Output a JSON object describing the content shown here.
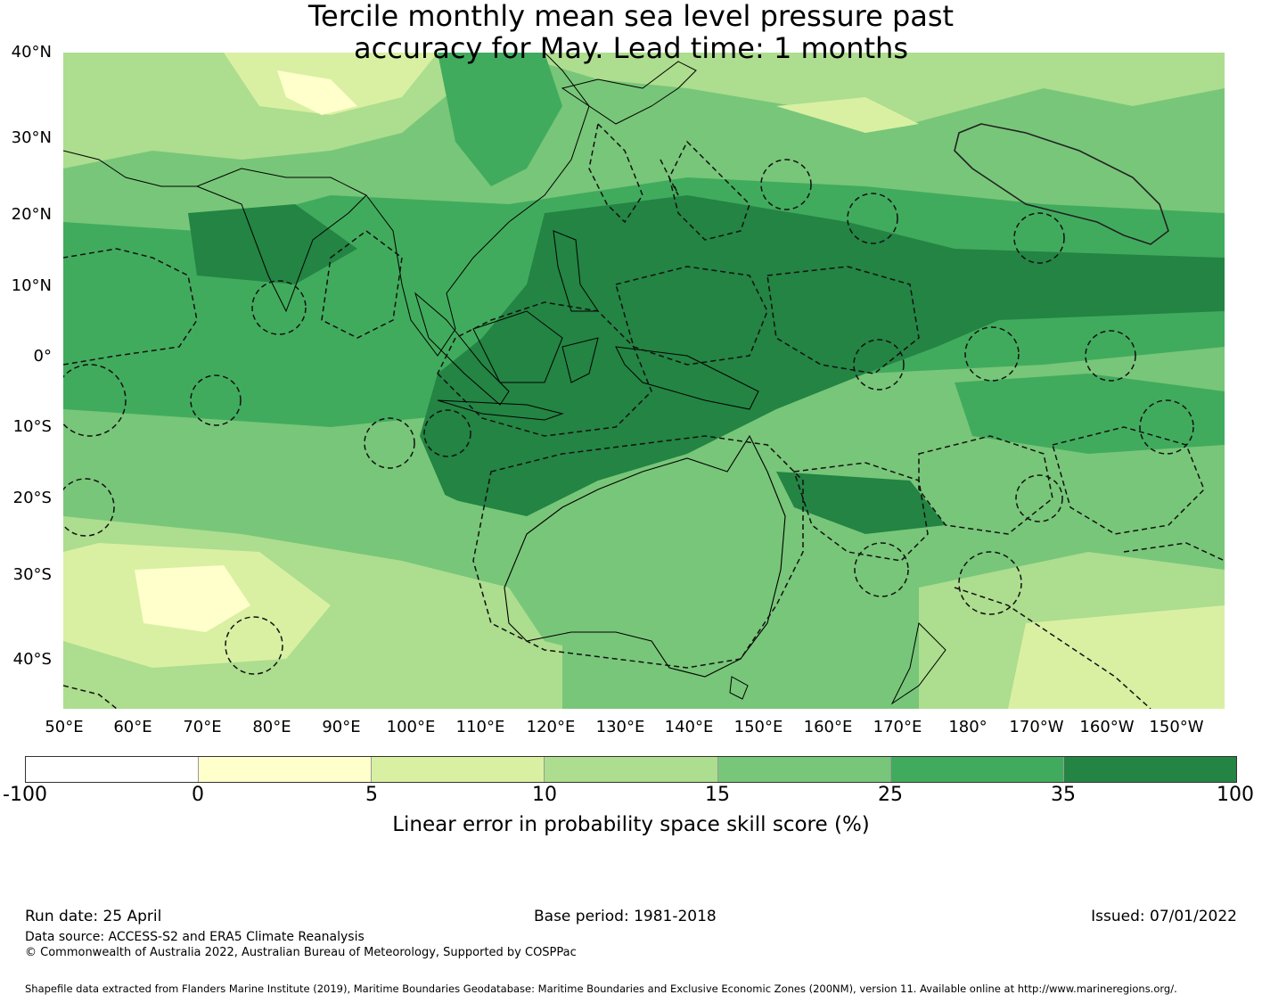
{
  "title": {
    "line1": "Tercile monthly mean sea level pressure past",
    "line2": "accuracy for May. Lead time: 1 months"
  },
  "map": {
    "region": "Pacific / Indian Ocean / Maritime Continent",
    "lat_labels": [
      "40°N",
      "30°N",
      "20°N",
      "10°N",
      "0°",
      "10°S",
      "20°S",
      "30°S",
      "40°S"
    ],
    "lon_labels": [
      "50°E",
      "60°E",
      "70°E",
      "80°E",
      "90°E",
      "100°E",
      "110°E",
      "120°E",
      "130°E",
      "140°E",
      "150°E",
      "160°E",
      "170°E",
      "180°",
      "170°W",
      "160°W",
      "150°W"
    ],
    "boundaries_style": "dashed EEZ lines",
    "highlighted_area": "Hawaii EEZ (solid outline)"
  },
  "colorbar": {
    "ticks": [
      "-100",
      "0",
      "5",
      "10",
      "15",
      "25",
      "35",
      "100"
    ],
    "colors": [
      "#ffffff",
      "#ffffcc",
      "#d9f0a3",
      "#addd8e",
      "#78c679",
      "#41ab5d",
      "#238443"
    ],
    "label": "Linear error in probability space skill score (%)"
  },
  "footer": {
    "run_date": "Run date: 25 April",
    "base_period": "Base period: 1981-2018",
    "issued": "Issued: 07/01/2022",
    "data_source": "Data source: ACCESS-S2 and ERA5 Climate Reanalysis",
    "copyright": "© Commonwealth of Australia 2022, Australian Bureau of Meteorology, Supported by COSPPac",
    "shapefile": "Shapefile data extracted from Flanders Marine Institute (2019), Maritime Boundaries Geodatabase: Maritime Boundaries and Exclusive Economic Zones (200NM), version 11. Available online at http://www.marineregions.org/."
  }
}
